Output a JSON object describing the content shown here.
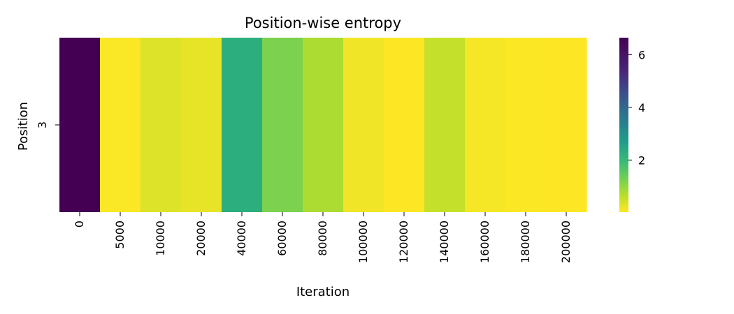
{
  "chart_data": {
    "type": "heatmap",
    "title": "Position-wise entropy",
    "xlabel": "Iteration",
    "ylabel": "Position",
    "x": [
      "0",
      "5000",
      "10000",
      "20000",
      "40000",
      "60000",
      "80000",
      "100000",
      "120000",
      "140000",
      "160000",
      "180000",
      "200000"
    ],
    "y": [
      "3"
    ],
    "values": [
      [
        6.65,
        0.05,
        0.35,
        0.25,
        2.5,
        1.35,
        0.85,
        0.15,
        0.02,
        0.6,
        0.1,
        0.03,
        0.02
      ]
    ],
    "colormap": "viridis_r",
    "colorbar": {
      "vmin": 0.02,
      "vmax": 6.65,
      "ticks": [
        2,
        4,
        6
      ],
      "tick_labels": [
        "2",
        "4",
        "6"
      ]
    }
  }
}
